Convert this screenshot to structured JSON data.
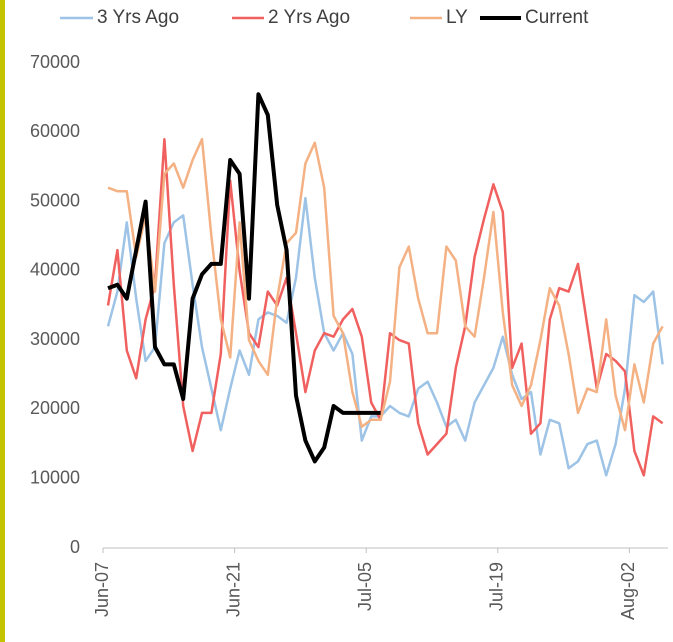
{
  "chart_data": {
    "type": "line",
    "categories": [
      "Jun-07",
      null,
      null,
      null,
      null,
      null,
      null,
      null,
      null,
      null,
      null,
      null,
      null,
      null,
      "Jun-21",
      null,
      null,
      null,
      null,
      null,
      null,
      null,
      null,
      null,
      null,
      null,
      null,
      null,
      "Jul-05",
      null,
      null,
      null,
      null,
      null,
      null,
      null,
      null,
      null,
      null,
      null,
      null,
      null,
      "Jul-19",
      null,
      null,
      null,
      null,
      null,
      null,
      null,
      null,
      null,
      null,
      null,
      null,
      null,
      "Aug-02",
      null,
      null,
      null
    ],
    "series": [
      {
        "name": "3 Yrs Ago",
        "color": "#9dc3e6",
        "width": 2.5,
        "values": [
          32000,
          37000,
          47000,
          36000,
          27000,
          29000,
          44000,
          47000,
          48000,
          38000,
          29000,
          23000,
          17000,
          23000,
          28500,
          25000,
          33000,
          34000,
          33500,
          32500,
          39000,
          50500,
          39000,
          31000,
          28500,
          31000,
          28000,
          15500,
          19000,
          19000,
          20500,
          19500,
          19000,
          23000,
          24000,
          21000,
          17500,
          18500,
          15500,
          21000,
          23500,
          26000,
          30500,
          25000,
          21500,
          22500,
          13500,
          18500,
          18000,
          11500,
          12500,
          15000,
          15500,
          10500,
          15000,
          23000,
          36500,
          35500,
          37000,
          26500
        ]
      },
      {
        "name": "2 Yrs Ago",
        "color": "#f0605f",
        "width": 2.5,
        "values": [
          35000,
          43000,
          28500,
          24500,
          33000,
          38000,
          59000,
          38000,
          20500,
          14000,
          19500,
          19500,
          28000,
          53000,
          40000,
          31000,
          29000,
          37000,
          35000,
          39000,
          31000,
          22500,
          28500,
          31000,
          30500,
          33000,
          34500,
          30500,
          21000,
          18500,
          31000,
          30000,
          29500,
          18000,
          13500,
          15000,
          16500,
          26000,
          32000,
          42000,
          47500,
          52500,
          48500,
          26000,
          29500,
          16500,
          18000,
          33000,
          37500,
          37000,
          41000,
          32000,
          23000,
          28000,
          27000,
          25500,
          14000,
          10500,
          19000,
          18000
        ]
      },
      {
        "name": "LY",
        "color": "#f4b183",
        "width": 2.5,
        "values": [
          52000,
          51500,
          51500,
          42000,
          48000,
          37000,
          54000,
          55500,
          52000,
          56000,
          59000,
          45000,
          33000,
          27500,
          47000,
          30000,
          27000,
          25000,
          36000,
          44000,
          45500,
          55500,
          58500,
          52000,
          33500,
          31000,
          22500,
          17500,
          18500,
          18500,
          24000,
          40500,
          43500,
          36000,
          31000,
          31000,
          43500,
          41500,
          32000,
          30500,
          39000,
          48500,
          34000,
          23500,
          20500,
          23500,
          30000,
          37500,
          35000,
          28000,
          19500,
          23000,
          22500,
          33000,
          22000,
          17000,
          26500,
          21000,
          29500,
          32000
        ]
      },
      {
        "name": "Current",
        "color": "#000000",
        "width": 4,
        "values": [
          37500,
          38000,
          36000,
          43000,
          50000,
          29000,
          26500,
          26500,
          21500,
          36000,
          39500,
          41000,
          41000,
          56000,
          54000,
          36000,
          65500,
          62500,
          49500,
          43000,
          22000,
          15500,
          12500,
          14500,
          20500,
          19500,
          19500,
          19500,
          19500,
          19500,
          null,
          null,
          null,
          null,
          null,
          null,
          null,
          null,
          null,
          null,
          null,
          null,
          null,
          null,
          null,
          null,
          null,
          null,
          null,
          null,
          null,
          null,
          null,
          null,
          null,
          null,
          null,
          null,
          null,
          null
        ]
      }
    ],
    "ylim": [
      0,
      70000
    ],
    "yticks": [
      0,
      10000,
      20000,
      30000,
      40000,
      50000,
      60000,
      70000
    ],
    "grid": false
  }
}
